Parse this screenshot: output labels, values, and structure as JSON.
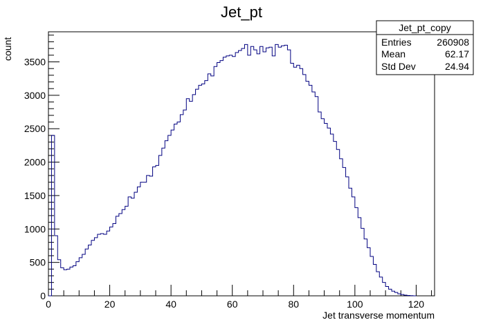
{
  "chart_data": {
    "type": "histogram",
    "title": "Jet_pt",
    "xlabel": "Jet transverse momentum",
    "ylabel": "count",
    "xlim": [
      0,
      126
    ],
    "ylim": [
      0,
      3950
    ],
    "x_ticks": [
      0,
      20,
      40,
      60,
      80,
      100,
      120
    ],
    "y_ticks": [
      0,
      500,
      1000,
      1500,
      2000,
      2500,
      3000,
      3500
    ],
    "grid": false,
    "line_color": "#000080",
    "bin_width": 1,
    "series": [
      {
        "values": [
          0,
          2400,
          900,
          540,
          420,
          390,
          400,
          430,
          450,
          510,
          570,
          620,
          700,
          760,
          830,
          870,
          920,
          930,
          920,
          970,
          1030,
          1080,
          1190,
          1230,
          1290,
          1340,
          1480,
          1460,
          1550,
          1630,
          1700,
          1700,
          1800,
          1790,
          1930,
          1950,
          2100,
          2210,
          2320,
          2400,
          2480,
          2570,
          2600,
          2710,
          2780,
          2950,
          2910,
          3010,
          3090,
          3150,
          3170,
          3220,
          3320,
          3290,
          3430,
          3490,
          3520,
          3570,
          3590,
          3600,
          3580,
          3640,
          3670,
          3700,
          3760,
          3600,
          3730,
          3680,
          3620,
          3730,
          3650,
          3710,
          3720,
          3590,
          3760,
          3720,
          3740,
          3750,
          3680,
          3480,
          3420,
          3450,
          3400,
          3310,
          3210,
          3150,
          3050,
          2980,
          2750,
          2650,
          2580,
          2510,
          2420,
          2310,
          2190,
          2050,
          1920,
          1780,
          1610,
          1480,
          1320,
          1170,
          1010,
          850,
          720,
          590,
          470,
          360,
          280,
          200,
          140,
          100,
          70,
          50,
          30,
          20,
          10,
          5,
          3,
          0
        ]
      }
    ],
    "stats_box": {
      "name": "Jet_pt_copy",
      "rows": [
        {
          "label": "Entries",
          "value": "260908"
        },
        {
          "label": "Mean",
          "value": "62.17"
        },
        {
          "label": "Std Dev",
          "value": "24.94"
        }
      ]
    }
  }
}
